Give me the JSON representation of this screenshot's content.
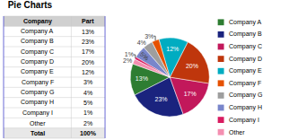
{
  "chart_data": [
    {
      "type": "table",
      "columns": [
        "Company",
        "Part"
      ],
      "rows": [
        [
          "Company A",
          "13%"
        ],
        [
          "Company B",
          "23%"
        ],
        [
          "Company C",
          "17%"
        ],
        [
          "Company D",
          "20%"
        ],
        [
          "Company E",
          "12%"
        ],
        [
          "Company F",
          "3%"
        ],
        [
          "Company G",
          "4%"
        ],
        [
          "Company H",
          "5%"
        ],
        [
          "Company I",
          "1%"
        ],
        [
          "Other",
          "2%"
        ]
      ],
      "total": [
        "Total",
        "100%"
      ]
    },
    {
      "type": "pie",
      "title": "Pie Charts",
      "categories": [
        "Company A",
        "Company B",
        "Company C",
        "Company D",
        "Company E",
        "Company F",
        "Company G",
        "Company H",
        "Company I",
        "Other"
      ],
      "values": [
        13,
        23,
        17,
        20,
        12,
        3,
        4,
        5,
        1,
        2
      ],
      "value_labels": [
        "13%",
        "23%",
        "17%",
        "20%",
        "12%",
        "3%",
        "4%",
        "5%",
        "1%",
        "2%"
      ],
      "colors": [
        "#2e7d32",
        "#1a237e",
        "#c2185b",
        "#bf360c",
        "#00acc1",
        "#e65100",
        "#9e9e9e",
        "#7986cb",
        "#d81b60",
        "#f48fb1"
      ],
      "data_labels": true,
      "legend": "right"
    }
  ]
}
